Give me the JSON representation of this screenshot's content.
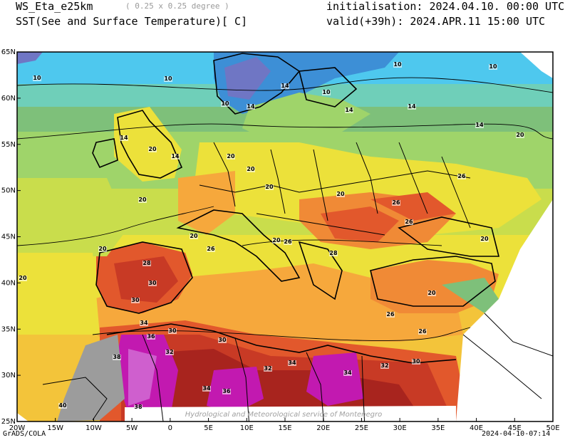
{
  "header": {
    "model": "WS_Eta_e25km",
    "resolution": "( 0.25 x 0.25 degree )",
    "variable": "SST(See and Surface Temperature)[ C]",
    "initialisation": "initialisation: 2024.04.10. 00:00 UTC",
    "valid": "valid(+39h): 2024.APR.11 15:00 UTC"
  },
  "footer": {
    "left": "GrADS/COLA",
    "right": "2024-04-10-07:14"
  },
  "watermark": "Hydrological and Meteorological service of Montenegro",
  "axes": {
    "lon_labels": [
      "20W",
      "15W",
      "10W",
      "5W",
      "0",
      "5E",
      "10E",
      "15E",
      "20E",
      "25E",
      "30E",
      "35E",
      "40E",
      "45E",
      "50E"
    ],
    "lat_labels": [
      "65N",
      "60N",
      "55N",
      "50N",
      "45N",
      "40N",
      "35N",
      "30N",
      "25N"
    ]
  },
  "contour_labels": [
    {
      "text": "10"
    },
    {
      "text": "10"
    },
    {
      "text": "10"
    },
    {
      "text": "10"
    },
    {
      "text": "10"
    },
    {
      "text": "10"
    },
    {
      "text": "14"
    },
    {
      "text": "14"
    },
    {
      "text": "14"
    },
    {
      "text": "14"
    },
    {
      "text": "14"
    },
    {
      "text": "14"
    },
    {
      "text": "14"
    },
    {
      "text": "20"
    },
    {
      "text": "20"
    },
    {
      "text": "20"
    },
    {
      "text": "20"
    },
    {
      "text": "20"
    },
    {
      "text": "20"
    },
    {
      "text": "20"
    },
    {
      "text": "20"
    },
    {
      "text": "20"
    },
    {
      "text": "20"
    },
    {
      "text": "20"
    },
    {
      "text": "20"
    },
    {
      "text": "20"
    },
    {
      "text": "26"
    },
    {
      "text": "26"
    },
    {
      "text": "26"
    },
    {
      "text": "26"
    },
    {
      "text": "26"
    },
    {
      "text": "26"
    },
    {
      "text": "26"
    },
    {
      "text": "28"
    },
    {
      "text": "28"
    },
    {
      "text": "30"
    },
    {
      "text": "30"
    },
    {
      "text": "30"
    },
    {
      "text": "30"
    },
    {
      "text": "30"
    },
    {
      "text": "32"
    },
    {
      "text": "32"
    },
    {
      "text": "32"
    },
    {
      "text": "34"
    },
    {
      "text": "34"
    },
    {
      "text": "34"
    },
    {
      "text": "34"
    },
    {
      "text": "36"
    },
    {
      "text": "36"
    },
    {
      "text": "38"
    },
    {
      "text": "38"
    },
    {
      "text": "40"
    }
  ],
  "colors": {
    "c_lt8": "#6f76c4",
    "c_8": "#3d8fd6",
    "c_10": "#4ec8ee",
    "c_12": "#6fcfb9",
    "c_14": "#7ec07a",
    "c_16": "#9fd46a",
    "c_18": "#c9dd4c",
    "c_20": "#ece13a",
    "c_22": "#f3c43a",
    "c_24": "#f6a83c",
    "c_26": "#f08a36",
    "c_28": "#e2582c",
    "c_30": "#c83a25",
    "c_32": "#a8241e",
    "c_34": "#c219b0",
    "c_36": "#cf5fce",
    "c_38": "#dd9be2",
    "land_gray": "#9c9c9c"
  }
}
